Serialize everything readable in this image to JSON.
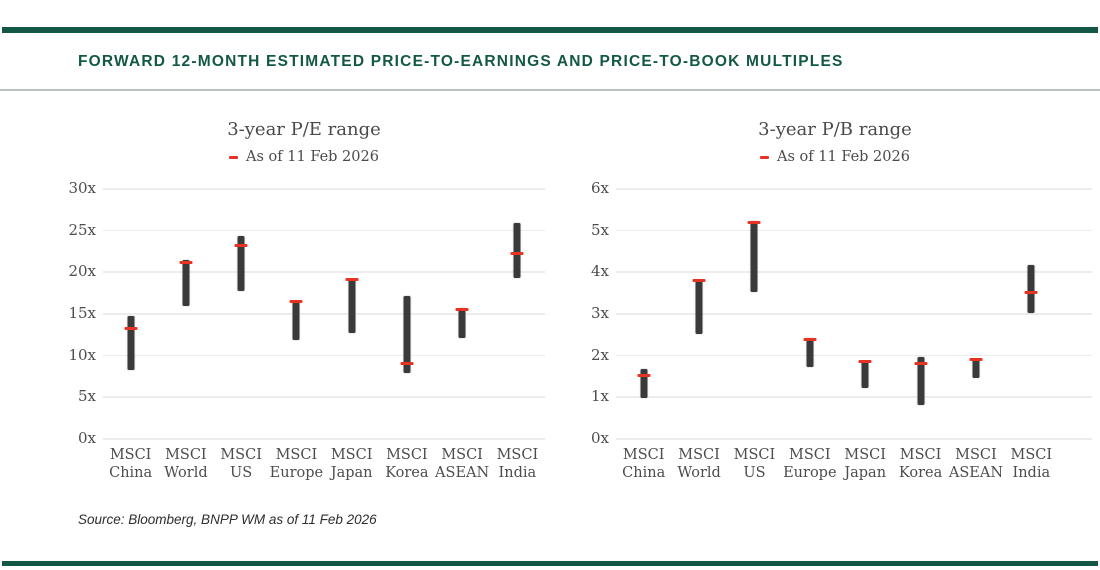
{
  "header": {
    "title": "FORWARD 12-MONTH ESTIMATED PRICE-TO-EARNINGS AND PRICE-TO-BOOK MULTIPLES"
  },
  "source": "Source: Bloomberg, BNPP WM as of 11 Feb 2026",
  "colors": {
    "accent_green": "#135847",
    "bar": "#3a3a3a",
    "marker_red": "#e63323",
    "grid": "#ececec",
    "text_gray": "#4d4d4d"
  },
  "chart_data": [
    {
      "type": "range-bar",
      "title": "3-year P/E range",
      "legend": "As of 11 Feb 2026",
      "xlabel": "",
      "ylabel": "",
      "ylim": [
        0,
        30
      ],
      "grid": "horizontal",
      "legend_position": "top-center",
      "yticks": [
        {
          "value": 0,
          "label": "0x"
        },
        {
          "value": 5,
          "label": "5x"
        },
        {
          "value": 10,
          "label": "10x"
        },
        {
          "value": 15,
          "label": "15x"
        },
        {
          "value": 20,
          "label": "20x"
        },
        {
          "value": 25,
          "label": "25x"
        },
        {
          "value": 30,
          "label": "30x"
        }
      ],
      "points": [
        {
          "category": "MSCI China",
          "label_lines": [
            "MSCI",
            "China"
          ],
          "low": 8.2,
          "high": 14.6,
          "as_of": 13.1
        },
        {
          "category": "MSCI World",
          "label_lines": [
            "MSCI",
            "World"
          ],
          "low": 15.8,
          "high": 21.4,
          "as_of": 21.1
        },
        {
          "category": "MSCI US",
          "label_lines": [
            "MSCI",
            "US"
          ],
          "low": 17.7,
          "high": 24.3,
          "as_of": 23.1
        },
        {
          "category": "MSCI Europe",
          "label_lines": [
            "MSCI",
            "Europe"
          ],
          "low": 11.8,
          "high": 16.5,
          "as_of": 16.4
        },
        {
          "category": "MSCI Japan",
          "label_lines": [
            "MSCI",
            "Japan"
          ],
          "low": 12.6,
          "high": 19.1,
          "as_of": 19.0
        },
        {
          "category": "MSCI Korea",
          "label_lines": [
            "MSCI",
            "Korea"
          ],
          "low": 7.8,
          "high": 17.0,
          "as_of": 8.9
        },
        {
          "category": "MSCI ASEAN",
          "label_lines": [
            "MSCI",
            "ASEAN"
          ],
          "low": 12.0,
          "high": 15.6,
          "as_of": 15.4
        },
        {
          "category": "MSCI India",
          "label_lines": [
            "MSCI",
            "India"
          ],
          "low": 19.2,
          "high": 25.8,
          "as_of": 22.1
        }
      ]
    },
    {
      "type": "range-bar",
      "title": "3-year P/B range",
      "legend": "As of 11 Feb 2026",
      "xlabel": "",
      "ylabel": "",
      "ylim": [
        0,
        6
      ],
      "grid": "horizontal",
      "legend_position": "top-center",
      "yticks": [
        {
          "value": 0,
          "label": "0x"
        },
        {
          "value": 1,
          "label": "1x"
        },
        {
          "value": 2,
          "label": "2x"
        },
        {
          "value": 3,
          "label": "3x"
        },
        {
          "value": 4,
          "label": "4x"
        },
        {
          "value": 5,
          "label": "5x"
        },
        {
          "value": 6,
          "label": "6x"
        }
      ],
      "points": [
        {
          "category": "MSCI China",
          "label_lines": [
            "MSCI",
            "China"
          ],
          "low": 0.95,
          "high": 1.65,
          "as_of": 1.5
        },
        {
          "category": "MSCI World",
          "label_lines": [
            "MSCI",
            "World"
          ],
          "low": 2.5,
          "high": 3.8,
          "as_of": 3.78
        },
        {
          "category": "MSCI US",
          "label_lines": [
            "MSCI",
            "US"
          ],
          "low": 3.5,
          "high": 5.2,
          "as_of": 5.18
        },
        {
          "category": "MSCI Europe",
          "label_lines": [
            "MSCI",
            "Europe"
          ],
          "low": 1.7,
          "high": 2.4,
          "as_of": 2.37
        },
        {
          "category": "MSCI Japan",
          "label_lines": [
            "MSCI",
            "Japan"
          ],
          "low": 1.2,
          "high": 1.85,
          "as_of": 1.83
        },
        {
          "category": "MSCI Korea",
          "label_lines": [
            "MSCI",
            "Korea"
          ],
          "low": 0.8,
          "high": 1.95,
          "as_of": 1.78
        },
        {
          "category": "MSCI ASEAN",
          "label_lines": [
            "MSCI",
            "ASEAN"
          ],
          "low": 1.45,
          "high": 1.9,
          "as_of": 1.88
        },
        {
          "category": "MSCI India",
          "label_lines": [
            "MSCI",
            "India"
          ],
          "low": 3.0,
          "high": 4.15,
          "as_of": 3.5
        }
      ]
    }
  ]
}
